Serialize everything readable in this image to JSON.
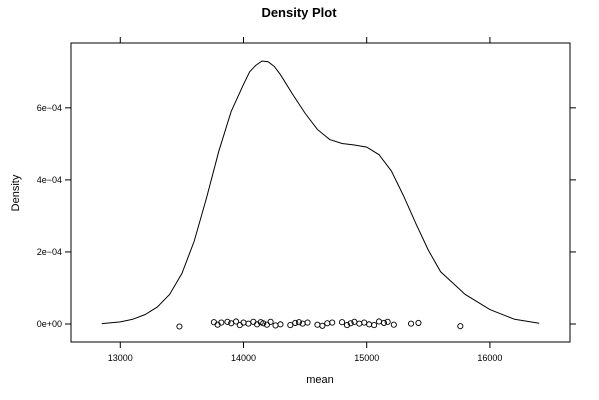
{
  "chart_data": {
    "type": "line",
    "title": "Density Plot",
    "xlabel": "mean",
    "ylabel": "Density",
    "xlim": [
      12600,
      16650
    ],
    "ylim": [
      -5e-05,
      0.00078
    ],
    "x_ticks": [
      {
        "value": 13000,
        "label": "13000"
      },
      {
        "value": 14000,
        "label": "14000"
      },
      {
        "value": 15000,
        "label": "15000"
      },
      {
        "value": 16000,
        "label": "16000"
      }
    ],
    "y_ticks": [
      {
        "value": 0,
        "label": "0e+00"
      },
      {
        "value": 0.0002,
        "label": "2e−04"
      },
      {
        "value": 0.0004,
        "label": "4e−04"
      },
      {
        "value": 0.0006,
        "label": "6e−04"
      }
    ],
    "grid": false,
    "legend": "none",
    "line_color": "#000000",
    "series": [
      {
        "x": [
          12850,
          13000,
          13100,
          13200,
          13300,
          13400,
          13500,
          13600,
          13700,
          13800,
          13900,
          14000,
          14050,
          14100,
          14150,
          14200,
          14250,
          14300,
          14400,
          14500,
          14600,
          14700,
          14800,
          14900,
          15000,
          15100,
          15200,
          15300,
          15400,
          15500,
          15600,
          15800,
          16000,
          16200,
          16400
        ],
        "y": [
          1e-06,
          6e-06,
          1.3e-05,
          2.6e-05,
          4.7e-05,
          8.2e-05,
          0.00014,
          0.00023,
          0.00035,
          0.00048,
          0.00059,
          0.000665,
          0.0007,
          0.000718,
          0.00073,
          0.000728,
          0.000715,
          0.000692,
          0.000637,
          0.000585,
          0.00054,
          0.000512,
          0.000501,
          0.000497,
          0.000491,
          0.00047,
          0.000425,
          0.000355,
          0.000278,
          0.000205,
          0.000145,
          8.2e-05,
          4e-05,
          1.3e-05,
          2e-06
        ]
      }
    ],
    "rug_points": [
      {
        "x": 13480,
        "y": -7e-06
      },
      {
        "x": 13760,
        "y": 5e-06
      },
      {
        "x": 13790,
        "y": -2e-06
      },
      {
        "x": 13820,
        "y": 4e-06
      },
      {
        "x": 13870,
        "y": 6e-06
      },
      {
        "x": 13900,
        "y": 2e-06
      },
      {
        "x": 13940,
        "y": 7e-06
      },
      {
        "x": 13970,
        "y": -3e-06
      },
      {
        "x": 14000,
        "y": 4e-06
      },
      {
        "x": 14040,
        "y": 1e-06
      },
      {
        "x": 14080,
        "y": 6e-06
      },
      {
        "x": 14110,
        "y": -1e-06
      },
      {
        "x": 14140,
        "y": 5e-06
      },
      {
        "x": 14160,
        "y": 2e-06
      },
      {
        "x": 14190,
        "y": -2e-06
      },
      {
        "x": 14220,
        "y": 6e-06
      },
      {
        "x": 14260,
        "y": -4e-06
      },
      {
        "x": 14300,
        "y": -1e-06
      },
      {
        "x": 14380,
        "y": -3e-06
      },
      {
        "x": 14420,
        "y": 3e-06
      },
      {
        "x": 14450,
        "y": 5e-06
      },
      {
        "x": 14480,
        "y": 1e-06
      },
      {
        "x": 14520,
        "y": 4e-06
      },
      {
        "x": 14600,
        "y": -2e-06
      },
      {
        "x": 14640,
        "y": -5e-06
      },
      {
        "x": 14680,
        "y": 2e-06
      },
      {
        "x": 14720,
        "y": 4e-06
      },
      {
        "x": 14800,
        "y": 5e-06
      },
      {
        "x": 14840,
        "y": -3e-06
      },
      {
        "x": 14870,
        "y": 2e-06
      },
      {
        "x": 14900,
        "y": 6e-06
      },
      {
        "x": 14940,
        "y": 1e-06
      },
      {
        "x": 14980,
        "y": 4e-06
      },
      {
        "x": 15020,
        "y": -1e-06
      },
      {
        "x": 15060,
        "y": -3e-06
      },
      {
        "x": 15100,
        "y": 7e-06
      },
      {
        "x": 15140,
        "y": 3e-06
      },
      {
        "x": 15170,
        "y": 6e-06
      },
      {
        "x": 15220,
        "y": -2e-06
      },
      {
        "x": 15360,
        "y": 1e-06
      },
      {
        "x": 15420,
        "y": 3e-06
      },
      {
        "x": 15760,
        "y": -6e-06
      }
    ]
  }
}
